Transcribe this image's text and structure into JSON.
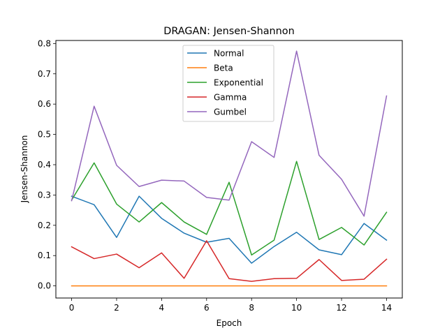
{
  "chart_data": {
    "type": "line",
    "title": "DRAGAN: Jensen-Shannon",
    "xlabel": "Epoch",
    "ylabel": "Jensen-Shannon",
    "xlim": [
      -0.7,
      14.7
    ],
    "ylim": [
      -0.04,
      0.81
    ],
    "xticks": [
      0,
      2,
      4,
      6,
      8,
      10,
      12,
      14
    ],
    "yticks": [
      0.0,
      0.1,
      0.2,
      0.3,
      0.4,
      0.5,
      0.6,
      0.7,
      0.8
    ],
    "ytick_labels": [
      "0.0",
      "0.1",
      "0.2",
      "0.3",
      "0.4",
      "0.5",
      "0.6",
      "0.7",
      "0.8"
    ],
    "grid": false,
    "legend_position": "top-center",
    "x": [
      0,
      1,
      2,
      3,
      4,
      5,
      6,
      7,
      8,
      9,
      10,
      11,
      12,
      13,
      14
    ],
    "series": [
      {
        "name": "Normal",
        "color": "#1f77b4",
        "values": [
          0.296,
          0.268,
          0.16,
          0.296,
          0.223,
          0.174,
          0.144,
          0.157,
          0.075,
          0.13,
          0.177,
          0.119,
          0.103,
          0.206,
          0.151
        ]
      },
      {
        "name": "Beta",
        "color": "#ff7f0e",
        "values": [
          0.0,
          0.0,
          0.0,
          0.0,
          0.0,
          0.0,
          0.0,
          0.0,
          0.0,
          0.0,
          0.0,
          0.0,
          0.0,
          0.0,
          0.0
        ]
      },
      {
        "name": "Exponential",
        "color": "#2ca02c",
        "values": [
          0.283,
          0.406,
          0.27,
          0.211,
          0.275,
          0.211,
          0.17,
          0.342,
          0.102,
          0.151,
          0.411,
          0.153,
          0.193,
          0.135,
          0.243
        ]
      },
      {
        "name": "Gamma",
        "color": "#d62728",
        "values": [
          0.129,
          0.09,
          0.105,
          0.06,
          0.109,
          0.025,
          0.149,
          0.024,
          0.015,
          0.024,
          0.025,
          0.087,
          0.018,
          0.022,
          0.088
        ]
      },
      {
        "name": "Gumbel",
        "color": "#9467bd",
        "values": [
          0.281,
          0.593,
          0.398,
          0.328,
          0.349,
          0.346,
          0.292,
          0.283,
          0.476,
          0.424,
          0.775,
          0.431,
          0.352,
          0.23,
          0.627
        ]
      }
    ]
  }
}
